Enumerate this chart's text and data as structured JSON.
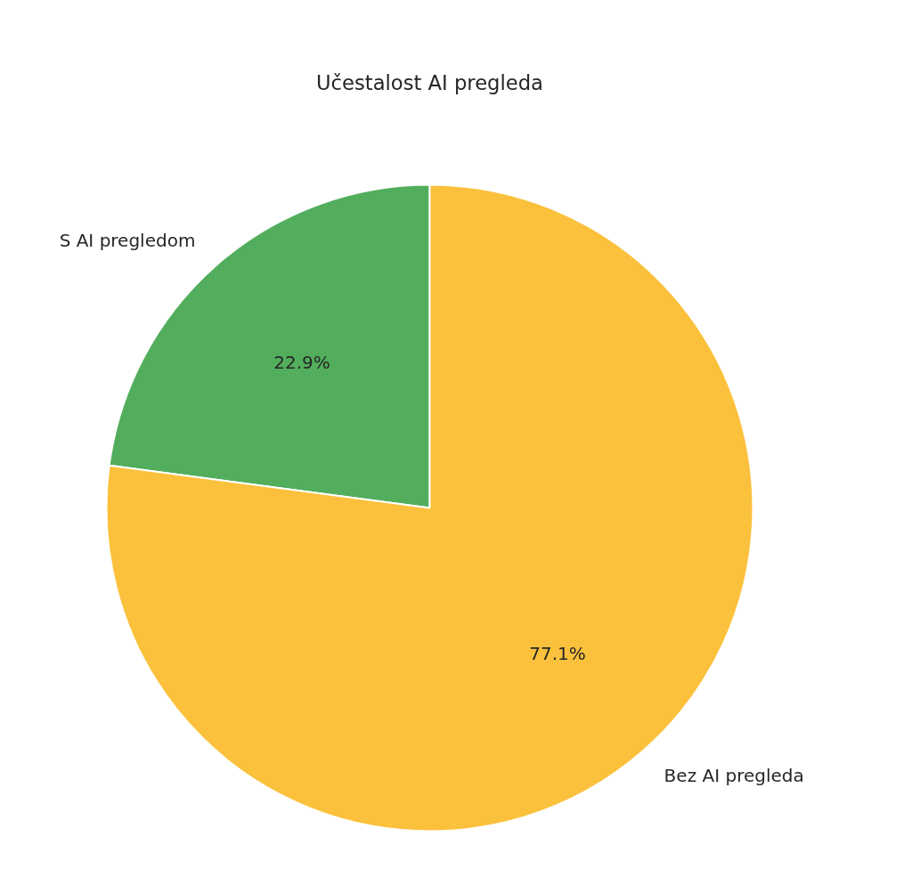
{
  "chart_data": {
    "type": "pie",
    "title": "Učestalost AI pregleda",
    "categories": [
      "S AI pregledom",
      "Bez AI pregleda"
    ],
    "values": [
      22.9,
      77.1
    ],
    "colors": [
      "#52ae5c",
      "#fbc13c"
    ],
    "value_labels": [
      "22.9%",
      "77.1%"
    ]
  }
}
